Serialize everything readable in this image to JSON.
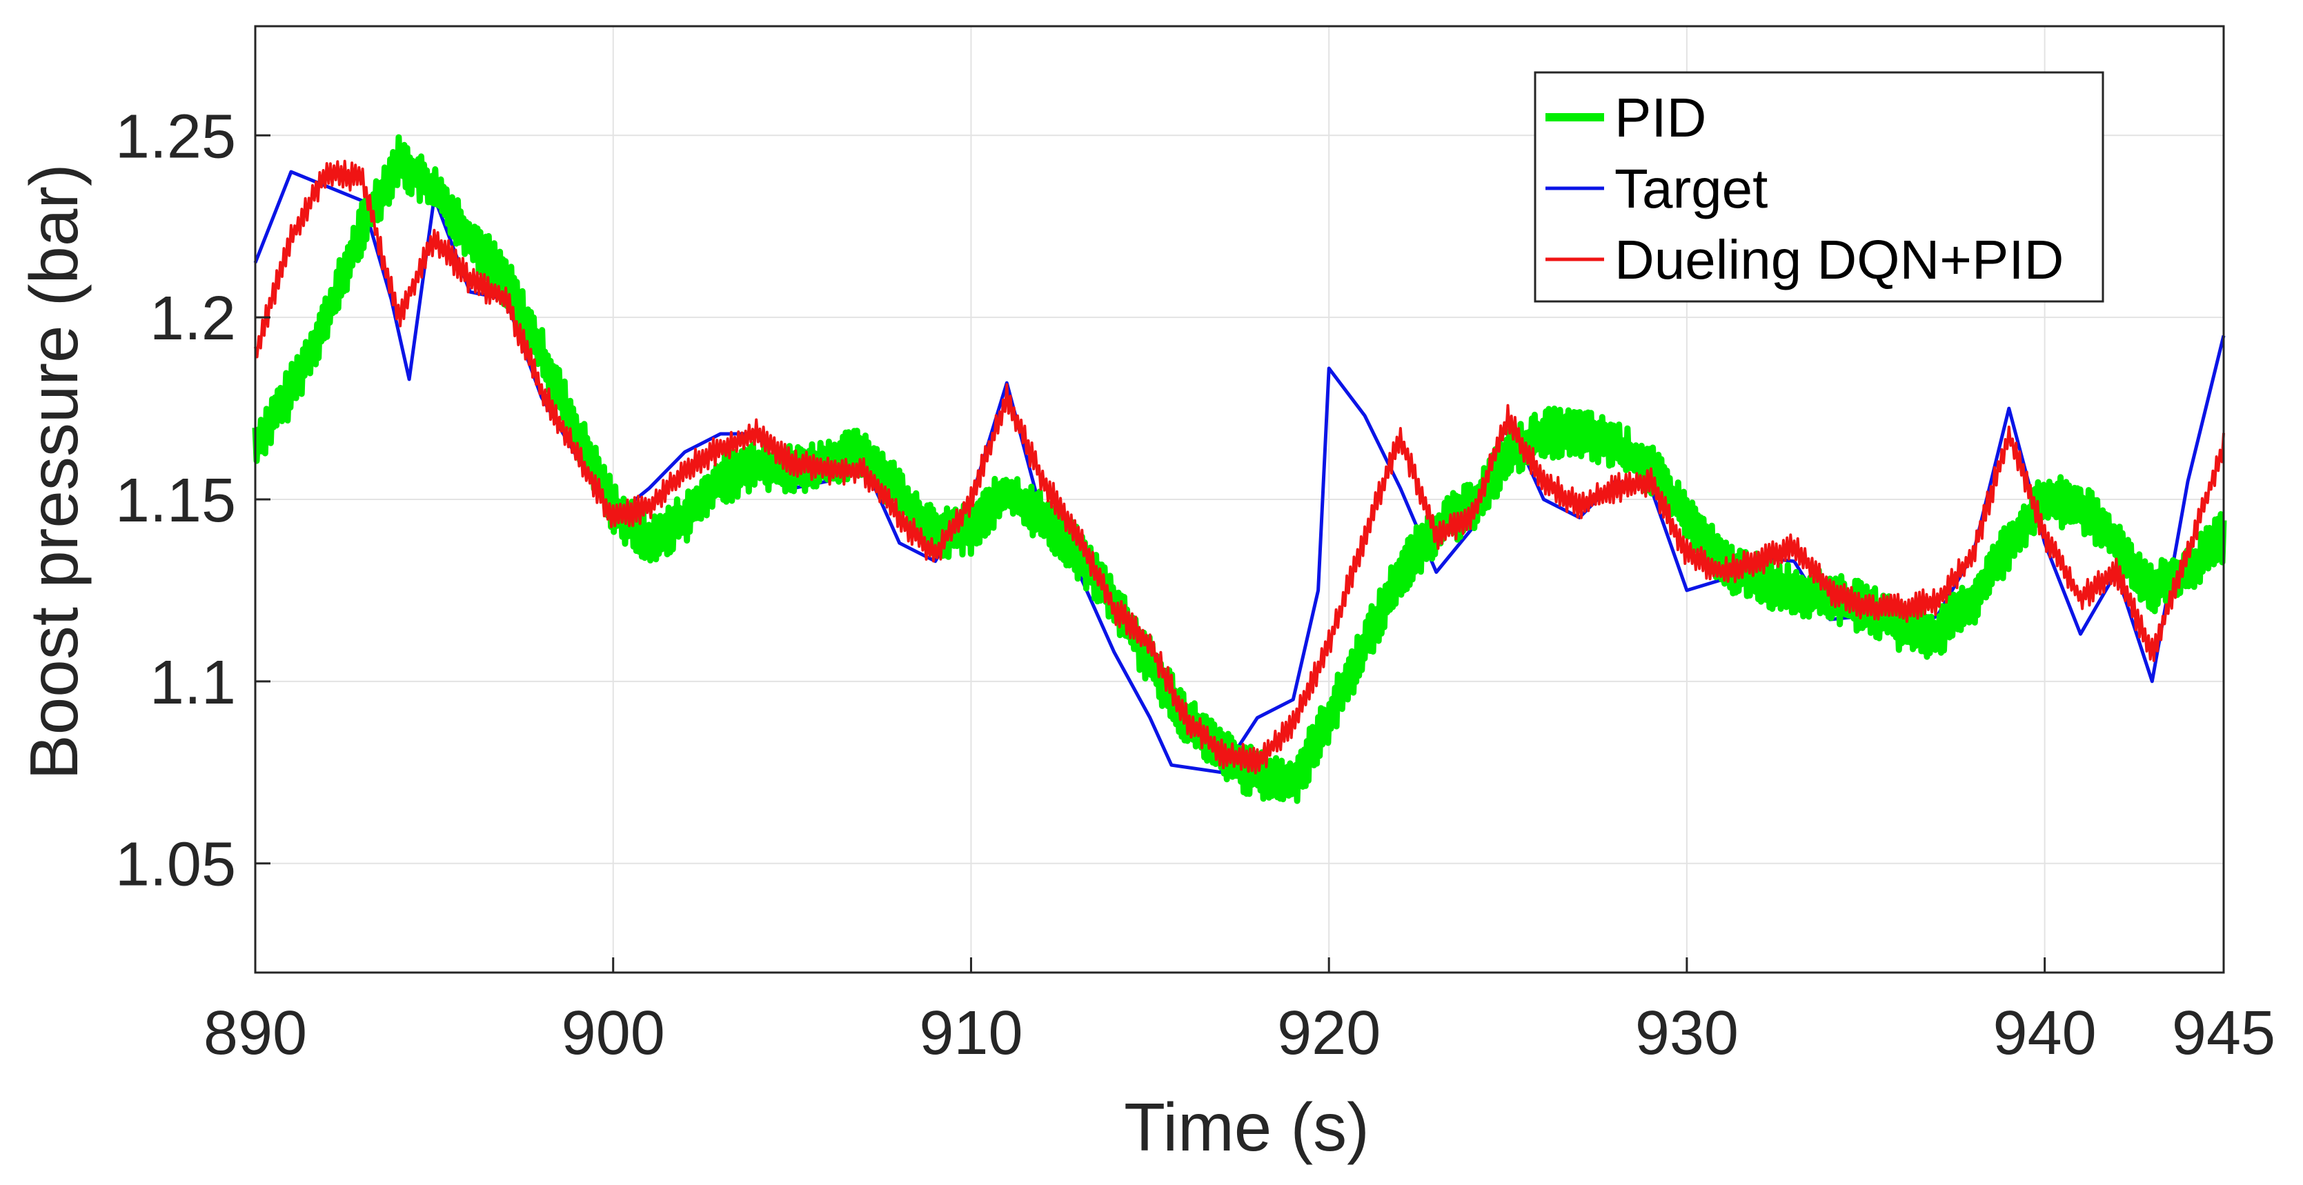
{
  "chart_data": {
    "type": "line",
    "title": "",
    "xlabel": "Time (s)",
    "ylabel": "Boost pressure (bar)",
    "xlim": [
      890,
      945
    ],
    "ylim": [
      1.02,
      1.28
    ],
    "x_ticks": [
      890,
      900,
      910,
      920,
      930,
      940,
      945
    ],
    "x_tick_labels": [
      "890",
      "900",
      "910",
      "920",
      "930",
      "940",
      "945"
    ],
    "y_ticks": [
      1.05,
      1.1,
      1.15,
      1.2,
      1.25
    ],
    "y_tick_labels": [
      "1.05",
      "1.1",
      "1.15",
      "1.2",
      "1.25"
    ],
    "grid": true,
    "legend_position": "top-right",
    "series": [
      {
        "name": "PID",
        "color": "#00ee00",
        "style": "thick-noisy",
        "noise_amplitude": 0.007,
        "x": [
          890,
          891,
          892,
          893,
          894,
          895,
          896,
          897,
          898,
          899,
          900,
          901,
          902,
          903,
          904,
          905,
          906,
          907,
          908,
          909,
          910,
          911,
          912,
          913,
          914,
          915,
          916,
          917,
          918,
          919,
          920,
          921,
          922,
          923,
          924,
          925,
          926,
          927,
          928,
          929,
          930,
          931,
          932,
          933,
          934,
          935,
          936,
          937,
          938,
          939,
          940,
          941,
          942,
          943,
          944,
          945
        ],
        "y": [
          1.165,
          1.18,
          1.2,
          1.225,
          1.243,
          1.235,
          1.222,
          1.21,
          1.19,
          1.168,
          1.148,
          1.138,
          1.145,
          1.155,
          1.16,
          1.158,
          1.16,
          1.163,
          1.152,
          1.14,
          1.142,
          1.152,
          1.145,
          1.135,
          1.122,
          1.105,
          1.09,
          1.08,
          1.074,
          1.072,
          1.09,
          1.11,
          1.13,
          1.142,
          1.148,
          1.162,
          1.168,
          1.168,
          1.165,
          1.158,
          1.145,
          1.132,
          1.128,
          1.125,
          1.123,
          1.12,
          1.115,
          1.113,
          1.122,
          1.138,
          1.15,
          1.148,
          1.138,
          1.125,
          1.13,
          1.14
        ]
      },
      {
        "name": "Target",
        "color": "#0a14e6",
        "style": "line",
        "x": [
          890,
          891,
          893,
          893.8,
          894.3,
          895,
          896,
          897,
          898,
          900,
          901,
          902,
          903,
          904,
          905,
          906,
          907,
          908,
          909,
          910,
          911,
          912,
          913,
          914,
          915,
          915.6,
          917,
          918,
          919,
          919.7,
          920,
          921,
          922,
          923,
          924,
          925,
          926,
          927,
          928,
          929,
          930,
          931,
          932,
          933,
          934,
          935,
          936,
          937,
          938,
          939,
          940,
          941,
          942,
          943,
          944,
          945
        ],
        "y": [
          1.215,
          1.24,
          1.232,
          1.205,
          1.183,
          1.233,
          1.207,
          1.205,
          1.178,
          1.145,
          1.153,
          1.163,
          1.168,
          1.168,
          1.153,
          1.155,
          1.16,
          1.138,
          1.133,
          1.15,
          1.182,
          1.145,
          1.13,
          1.108,
          1.09,
          1.077,
          1.075,
          1.09,
          1.095,
          1.125,
          1.186,
          1.173,
          1.153,
          1.13,
          1.142,
          1.172,
          1.15,
          1.145,
          1.155,
          1.153,
          1.125,
          1.128,
          1.134,
          1.133,
          1.117,
          1.118,
          1.113,
          1.118,
          1.135,
          1.175,
          1.138,
          1.113,
          1.13,
          1.1,
          1.155,
          1.195
        ]
      },
      {
        "name": "Dueling DQN+PID",
        "color": "#f01414",
        "style": "noisy",
        "noise_amplitude": 0.004,
        "x": [
          890,
          891,
          892,
          893,
          894,
          895,
          896,
          897,
          898,
          899,
          900,
          901,
          902,
          903,
          904,
          905,
          906,
          907,
          908,
          909,
          910,
          911,
          912,
          913,
          914,
          915,
          916,
          917,
          918,
          919,
          920,
          921,
          922,
          923,
          924,
          925,
          926,
          927,
          928,
          929,
          930,
          931,
          932,
          933,
          934,
          935,
          936,
          937,
          938,
          939,
          940,
          941,
          942,
          943,
          944,
          945
        ],
        "y": [
          1.19,
          1.222,
          1.24,
          1.238,
          1.2,
          1.222,
          1.21,
          1.205,
          1.18,
          1.162,
          1.145,
          1.148,
          1.158,
          1.164,
          1.168,
          1.16,
          1.158,
          1.158,
          1.145,
          1.135,
          1.15,
          1.178,
          1.155,
          1.14,
          1.12,
          1.11,
          1.09,
          1.08,
          1.078,
          1.088,
          1.11,
          1.14,
          1.167,
          1.14,
          1.145,
          1.172,
          1.155,
          1.148,
          1.153,
          1.155,
          1.135,
          1.13,
          1.133,
          1.137,
          1.125,
          1.12,
          1.12,
          1.122,
          1.135,
          1.168,
          1.14,
          1.123,
          1.13,
          1.108,
          1.135,
          1.165
        ]
      }
    ]
  }
}
